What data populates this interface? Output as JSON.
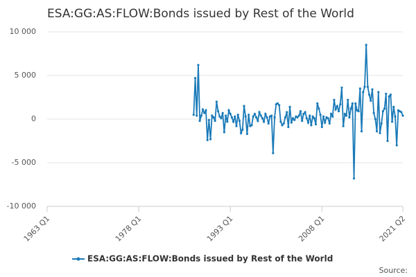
{
  "chart_data": {
    "type": "line",
    "title": "ESA:GG:AS:FLOW:Bonds issued by Rest of the World",
    "source": "Source:",
    "xlim": [
      "1963 Q1",
      "2021 Q2"
    ],
    "xticks": [
      "1963 Q1",
      "1978 Q1",
      "1993 Q1",
      "2008 Q1",
      "2021 Q2"
    ],
    "ylim": [
      -10000,
      10000
    ],
    "yticks": [
      {
        "value": -10000,
        "label": "-10 000"
      },
      {
        "value": -5000,
        "label": "-5 000"
      },
      0,
      {
        "value": 5000,
        "label": "5 000"
      },
      {
        "value": 10000,
        "label": "10 000"
      }
    ],
    "grid": true,
    "x": [
      "1987 Q1",
      "1987 Q2",
      "1987 Q3",
      "1987 Q4",
      "1988 Q1",
      "1988 Q2",
      "1988 Q3",
      "1988 Q4",
      "1989 Q1",
      "1989 Q2",
      "1989 Q3",
      "1989 Q4",
      "1990 Q1",
      "1990 Q2",
      "1990 Q3",
      "1990 Q4",
      "1991 Q1",
      "1991 Q2",
      "1991 Q3",
      "1991 Q4",
      "1992 Q1",
      "1992 Q2",
      "1992 Q3",
      "1992 Q4",
      "1993 Q1",
      "1993 Q2",
      "1993 Q3",
      "1993 Q4",
      "1994 Q1",
      "1994 Q2",
      "1994 Q3",
      "1994 Q4",
      "1995 Q1",
      "1995 Q2",
      "1995 Q3",
      "1995 Q4",
      "1996 Q1",
      "1996 Q2",
      "1996 Q3",
      "1996 Q4",
      "1997 Q1",
      "1997 Q2",
      "1997 Q3",
      "1997 Q4",
      "1998 Q1",
      "1998 Q2",
      "1998 Q3",
      "1998 Q4",
      "1999 Q1",
      "1999 Q2",
      "1999 Q3",
      "1999 Q4",
      "2000 Q1",
      "2000 Q2",
      "2000 Q3",
      "2000 Q4",
      "2001 Q1",
      "2001 Q2",
      "2001 Q3",
      "2001 Q4",
      "2002 Q1",
      "2002 Q2",
      "2002 Q3",
      "2002 Q4",
      "2003 Q1",
      "2003 Q2",
      "2003 Q3",
      "2003 Q4",
      "2004 Q1",
      "2004 Q2",
      "2004 Q3",
      "2004 Q4",
      "2005 Q1",
      "2005 Q2",
      "2005 Q3",
      "2005 Q4",
      "2006 Q1",
      "2006 Q2",
      "2006 Q3",
      "2006 Q4",
      "2007 Q1",
      "2007 Q2",
      "2007 Q3",
      "2007 Q4",
      "2008 Q1",
      "2008 Q2",
      "2008 Q3",
      "2008 Q4",
      "2009 Q1",
      "2009 Q2",
      "2009 Q3",
      "2009 Q4",
      "2010 Q1",
      "2010 Q2",
      "2010 Q3",
      "2010 Q4",
      "2011 Q1",
      "2011 Q2",
      "2011 Q3",
      "2011 Q4",
      "2012 Q1",
      "2012 Q2",
      "2012 Q3",
      "2012 Q4",
      "2013 Q1",
      "2013 Q2",
      "2013 Q3",
      "2013 Q4",
      "2014 Q1",
      "2014 Q2",
      "2014 Q3",
      "2014 Q4",
      "2015 Q1",
      "2015 Q2",
      "2015 Q3",
      "2015 Q4",
      "2016 Q1",
      "2016 Q2",
      "2016 Q3",
      "2016 Q4",
      "2017 Q1",
      "2017 Q2",
      "2017 Q3",
      "2017 Q4",
      "2018 Q1",
      "2018 Q2",
      "2018 Q3",
      "2018 Q4",
      "2019 Q1",
      "2019 Q2",
      "2019 Q3",
      "2019 Q4",
      "2020 Q1",
      "2020 Q2",
      "2020 Q3",
      "2020 Q4",
      "2021 Q1",
      "2021 Q2"
    ],
    "series": [
      {
        "name": "ESA:GG:AS:FLOW:Bonds issued by Rest of the World",
        "color": "#1a7ab8",
        "values": [
          500,
          4700,
          400,
          6200,
          -200,
          400,
          1100,
          700,
          1000,
          -2400,
          -100,
          -2300,
          400,
          200,
          -200,
          2000,
          900,
          300,
          100,
          700,
          -1500,
          400,
          -300,
          1000,
          600,
          200,
          -300,
          300,
          -800,
          500,
          -200,
          -1600,
          -1200,
          1500,
          300,
          -1700,
          500,
          -800,
          -700,
          300,
          600,
          200,
          -200,
          800,
          400,
          100,
          -300,
          600,
          200,
          -500,
          300,
          400,
          -3900,
          200,
          1700,
          1800,
          1600,
          -300,
          -700,
          -500,
          200,
          800,
          -900,
          1400,
          -400,
          100,
          -100,
          300,
          200,
          400,
          900,
          -200,
          600,
          800,
          100,
          -400,
          400,
          -700,
          300,
          100,
          -600,
          1800,
          1200,
          500,
          -900,
          300,
          -400,
          200,
          100,
          -500,
          600,
          300,
          2200,
          1100,
          1500,
          900,
          1700,
          3600,
          -800,
          600,
          400,
          2200,
          200,
          1200,
          1800,
          -6800,
          1800,
          1000,
          900,
          3500,
          -1400,
          3100,
          3700,
          8500,
          3700,
          2800,
          2100,
          3400,
          700,
          0,
          -1400,
          3100,
          -1600,
          -500,
          900,
          1200,
          2900,
          -2500,
          2600,
          2800,
          -300,
          1400,
          300,
          -3000,
          1000,
          900,
          800,
          400
        ]
      }
    ]
  }
}
